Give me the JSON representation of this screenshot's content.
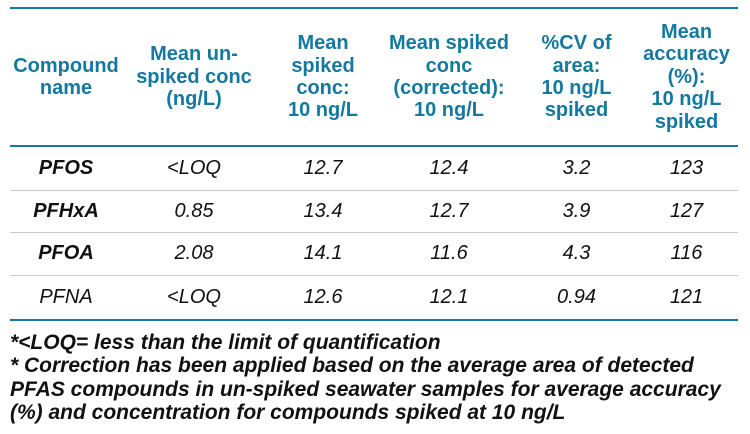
{
  "theme": {
    "accent": "#15799f",
    "row_divider": "#c9c9c9",
    "text": "#111111",
    "background": "#ffffff"
  },
  "table": {
    "headers": [
      {
        "label": "Compound\nname"
      },
      {
        "label": "Mean un-\nspiked conc\n(ng/L)"
      },
      {
        "label": "Mean\nspiked\nconc:\n10 ng/L"
      },
      {
        "label": "Mean spiked\nconc\n(corrected):\n10 ng/L"
      },
      {
        "label": "%CV of\narea:\n10 ng/L\nspiked"
      },
      {
        "label": "Mean\naccuracy\n(%):\n10 ng/L\nspiked"
      }
    ],
    "rows": [
      {
        "compound": "PFOS",
        "bold": true,
        "values": [
          "<LOQ",
          "12.7",
          "12.4",
          "3.2",
          "123"
        ]
      },
      {
        "compound": "PFHxA",
        "bold": true,
        "values": [
          "0.85",
          "13.4",
          "12.7",
          "3.9",
          "127"
        ]
      },
      {
        "compound": "PFOA",
        "bold": true,
        "values": [
          "2.08",
          "14.1",
          "11.6",
          "4.3",
          "116"
        ]
      },
      {
        "compound": "PFNA",
        "bold": false,
        "values": [
          "<LOQ",
          "12.6",
          "12.1",
          "0.94",
          "121"
        ]
      }
    ]
  },
  "footnotes": {
    "loq_note": "*<LOQ= less than the limit of quantification",
    "correction_note": "* Correction has been applied based on the average area of detected\nPFAS compounds in un-spiked seawater samples for average accuracy\n(%) and concentration for compounds spiked at 10 ng/L"
  }
}
